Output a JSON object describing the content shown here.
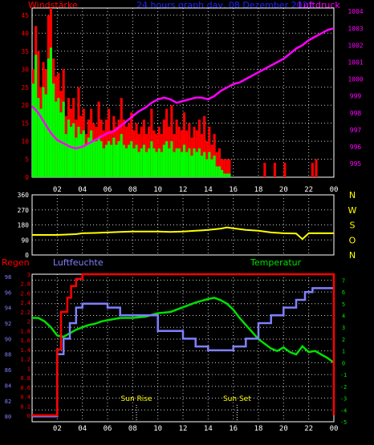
{
  "header": {
    "left_label": "Windstärke",
    "center_label": "24 hours graph day, 08 Dezember 2021",
    "right_label": "Luftdruck"
  },
  "direction_letters": [
    "N",
    "W",
    "S",
    "O",
    "N"
  ],
  "bottom_labels": {
    "rain": "Regen",
    "humidity": "Luftfeuchte",
    "temperature": "Temperatur",
    "sunrise": "Sun Rise",
    "sunset": "Sun Set"
  },
  "colors": {
    "wind_gust": "#ff0000",
    "wind_avg": "#00ff00",
    "pressure": "#ff00ff",
    "direction": "#ffff00",
    "rain": "#ff0000",
    "humidity": "#8080ff",
    "temperature": "#00e000",
    "grid": "#ffffff",
    "header_blue": "#2020ff",
    "sun_label": "#ffff00"
  },
  "chart_data": [
    {
      "type": "bar",
      "name": "wind",
      "x_ticks": [
        "02",
        "04",
        "06",
        "08",
        "10",
        "12",
        "14",
        "16",
        "18",
        "20",
        "22",
        "00"
      ],
      "y_ticks_left": [
        0,
        5,
        10,
        15,
        20,
        25,
        30,
        35,
        40,
        45
      ],
      "y_ticks_right": [
        995,
        996,
        997,
        998,
        999,
        1000,
        1001,
        1002,
        1003,
        1004
      ],
      "ylim_left": [
        0,
        47
      ],
      "ylim_right": [
        994.2,
        1004.2
      ],
      "xlim_hours": [
        0,
        24
      ],
      "gust_samples": [
        [
          0.1,
          30
        ],
        [
          0.3,
          42
        ],
        [
          0.5,
          35
        ],
        [
          0.7,
          25
        ],
        [
          0.9,
          32
        ],
        [
          1.1,
          30
        ],
        [
          1.3,
          45
        ],
        [
          1.5,
          47
        ],
        [
          1.7,
          33
        ],
        [
          1.9,
          28
        ],
        [
          2.1,
          29
        ],
        [
          2.3,
          24
        ],
        [
          2.5,
          30
        ],
        [
          2.7,
          17
        ],
        [
          2.9,
          22
        ],
        [
          3.1,
          19
        ],
        [
          3.3,
          22
        ],
        [
          3.5,
          16
        ],
        [
          3.7,
          25
        ],
        [
          3.9,
          17
        ],
        [
          4.1,
          19
        ],
        [
          4.3,
          12
        ],
        [
          4.5,
          16
        ],
        [
          4.7,
          19
        ],
        [
          4.9,
          15
        ],
        [
          5.1,
          14
        ],
        [
          5.3,
          21
        ],
        [
          5.5,
          16
        ],
        [
          5.7,
          13
        ],
        [
          5.9,
          16
        ],
        [
          6.1,
          19
        ],
        [
          6.3,
          13
        ],
        [
          6.5,
          17
        ],
        [
          6.7,
          14
        ],
        [
          6.9,
          16
        ],
        [
          7.1,
          22
        ],
        [
          7.3,
          16
        ],
        [
          7.5,
          14
        ],
        [
          7.7,
          15
        ],
        [
          7.9,
          18
        ],
        [
          8.1,
          13
        ],
        [
          8.3,
          15
        ],
        [
          8.5,
          12
        ],
        [
          8.7,
          14
        ],
        [
          8.9,
          16
        ],
        [
          9.1,
          12
        ],
        [
          9.3,
          14
        ],
        [
          9.5,
          19
        ],
        [
          9.7,
          13
        ],
        [
          9.9,
          12
        ],
        [
          10.1,
          14
        ],
        [
          10.3,
          12
        ],
        [
          10.5,
          16
        ],
        [
          10.7,
          19
        ],
        [
          10.9,
          14
        ],
        [
          11.1,
          20
        ],
        [
          11.3,
          12
        ],
        [
          11.5,
          16
        ],
        [
          11.7,
          14
        ],
        [
          11.9,
          13
        ],
        [
          12.1,
          18
        ],
        [
          12.3,
          13
        ],
        [
          12.5,
          15
        ],
        [
          12.7,
          11
        ],
        [
          12.9,
          14
        ],
        [
          13.1,
          13
        ],
        [
          13.3,
          16
        ],
        [
          13.5,
          12
        ],
        [
          13.7,
          17
        ],
        [
          13.9,
          10
        ],
        [
          14.1,
          14
        ],
        [
          14.3,
          9
        ],
        [
          14.5,
          12
        ],
        [
          14.7,
          7
        ],
        [
          14.9,
          8
        ],
        [
          15.1,
          5
        ],
        [
          15.3,
          5
        ],
        [
          15.5,
          5
        ],
        [
          15.7,
          5
        ],
        [
          18.5,
          4
        ],
        [
          19.3,
          4
        ],
        [
          20.1,
          4
        ],
        [
          22.3,
          4
        ],
        [
          22.6,
          5
        ]
      ],
      "avg_samples": [
        [
          0.1,
          26
        ],
        [
          0.3,
          34
        ],
        [
          0.5,
          22
        ],
        [
          0.7,
          19
        ],
        [
          0.9,
          25
        ],
        [
          1.1,
          23
        ],
        [
          1.3,
          33
        ],
        [
          1.5,
          36
        ],
        [
          1.7,
          26
        ],
        [
          1.9,
          21
        ],
        [
          2.1,
          22
        ],
        [
          2.3,
          18
        ],
        [
          2.5,
          21
        ],
        [
          2.7,
          12
        ],
        [
          2.9,
          16
        ],
        [
          3.1,
          14
        ],
        [
          3.3,
          15
        ],
        [
          3.5,
          11
        ],
        [
          3.7,
          14
        ],
        [
          3.9,
          12
        ],
        [
          4.1,
          13
        ],
        [
          4.3,
          9
        ],
        [
          4.5,
          11
        ],
        [
          4.7,
          13
        ],
        [
          4.9,
          10
        ],
        [
          5.1,
          10
        ],
        [
          5.3,
          11
        ],
        [
          5.5,
          10
        ],
        [
          5.7,
          8
        ],
        [
          5.9,
          9
        ],
        [
          6.1,
          10
        ],
        [
          6.3,
          9
        ],
        [
          6.5,
          11
        ],
        [
          6.7,
          9
        ],
        [
          6.9,
          10
        ],
        [
          7.1,
          12
        ],
        [
          7.3,
          9
        ],
        [
          7.5,
          8
        ],
        [
          7.7,
          9
        ],
        [
          7.9,
          10
        ],
        [
          8.1,
          8
        ],
        [
          8.3,
          9
        ],
        [
          8.5,
          7
        ],
        [
          8.7,
          8
        ],
        [
          8.9,
          9
        ],
        [
          9.1,
          7
        ],
        [
          9.3,
          8
        ],
        [
          9.5,
          10
        ],
        [
          9.7,
          8
        ],
        [
          9.9,
          7
        ],
        [
          10.1,
          8
        ],
        [
          10.3,
          7
        ],
        [
          10.5,
          9
        ],
        [
          10.7,
          10
        ],
        [
          10.9,
          8
        ],
        [
          11.1,
          10
        ],
        [
          11.3,
          7
        ],
        [
          11.5,
          8
        ],
        [
          11.7,
          8
        ],
        [
          11.9,
          7
        ],
        [
          12.1,
          9
        ],
        [
          12.3,
          7
        ],
        [
          12.5,
          8
        ],
        [
          12.7,
          6
        ],
        [
          12.9,
          8
        ],
        [
          13.1,
          7
        ],
        [
          13.3,
          8
        ],
        [
          13.5,
          6
        ],
        [
          13.7,
          7
        ],
        [
          13.9,
          5
        ],
        [
          14.1,
          7
        ],
        [
          14.3,
          5
        ],
        [
          14.5,
          6
        ],
        [
          14.7,
          3
        ],
        [
          14.9,
          3
        ],
        [
          15.1,
          2
        ],
        [
          15.3,
          1
        ],
        [
          15.5,
          1
        ],
        [
          15.7,
          1
        ]
      ],
      "pressure": [
        [
          0,
          998.4
        ],
        [
          0.5,
          998.0
        ],
        [
          1,
          997.4
        ],
        [
          1.5,
          996.8
        ],
        [
          2,
          996.4
        ],
        [
          2.5,
          996.2
        ],
        [
          3,
          996.0
        ],
        [
          3.5,
          995.9
        ],
        [
          4,
          996.0
        ],
        [
          4.5,
          996.2
        ],
        [
          5,
          996.4
        ],
        [
          5.5,
          996.6
        ],
        [
          6,
          996.8
        ],
        [
          6.5,
          996.9
        ],
        [
          7,
          997.2
        ],
        [
          7.5,
          997.5
        ],
        [
          8,
          997.8
        ],
        [
          8.5,
          998.1
        ],
        [
          9,
          998.3
        ],
        [
          9.5,
          998.6
        ],
        [
          10,
          998.8
        ],
        [
          10.5,
          998.9
        ],
        [
          11,
          998.8
        ],
        [
          11.5,
          998.6
        ],
        [
          12,
          998.7
        ],
        [
          12.5,
          998.8
        ],
        [
          13,
          998.9
        ],
        [
          13.5,
          998.9
        ],
        [
          14,
          998.8
        ],
        [
          14.5,
          999.0
        ],
        [
          15,
          999.3
        ],
        [
          15.5,
          999.5
        ],
        [
          16,
          999.7
        ],
        [
          16.5,
          999.8
        ],
        [
          17,
          1000.0
        ],
        [
          17.5,
          1000.2
        ],
        [
          18,
          1000.4
        ],
        [
          18.5,
          1000.6
        ],
        [
          19,
          1000.8
        ],
        [
          19.5,
          1001.0
        ],
        [
          20,
          1001.2
        ],
        [
          20.5,
          1001.5
        ],
        [
          21,
          1001.8
        ],
        [
          21.5,
          1002.0
        ],
        [
          22,
          1002.3
        ],
        [
          22.5,
          1002.5
        ],
        [
          23,
          1002.7
        ],
        [
          23.5,
          1002.9
        ],
        [
          24,
          1003.0
        ]
      ]
    },
    {
      "type": "line",
      "name": "direction",
      "y_ticks": [
        0,
        90,
        180,
        270,
        360
      ],
      "ylim": [
        0,
        360
      ],
      "xlim_hours": [
        0,
        24
      ],
      "values": [
        [
          0,
          120
        ],
        [
          2,
          120
        ],
        [
          3.5,
          125
        ],
        [
          4,
          130
        ],
        [
          5,
          132
        ],
        [
          6,
          135
        ],
        [
          7,
          138
        ],
        [
          8,
          140
        ],
        [
          9,
          140
        ],
        [
          10,
          140
        ],
        [
          11,
          138
        ],
        [
          12,
          140
        ],
        [
          13,
          145
        ],
        [
          14,
          150
        ],
        [
          15,
          158
        ],
        [
          15.5,
          165
        ],
        [
          16,
          160
        ],
        [
          17,
          150
        ],
        [
          18,
          145
        ],
        [
          19,
          135
        ],
        [
          20,
          130
        ],
        [
          21,
          128
        ],
        [
          21.5,
          95
        ],
        [
          22,
          130
        ],
        [
          23,
          130
        ],
        [
          24,
          130
        ]
      ]
    },
    {
      "type": "line",
      "name": "rain_humidity_temperature",
      "rain_ticks": [
        0,
        0.2,
        0.4,
        0.6,
        0.8,
        1,
        1.2,
        1.4,
        1.6,
        1.8,
        2,
        2.2,
        2.4,
        2.6,
        2.8,
        3
      ],
      "humidity_ticks": [
        80,
        82,
        84,
        86,
        88,
        90,
        92,
        94,
        96,
        98
      ],
      "temperature_ticks": [
        -5,
        -4,
        -3,
        -2,
        -1,
        0,
        1,
        2,
        3,
        4,
        5,
        6,
        7
      ],
      "rain_ylim": [
        0,
        3
      ],
      "humidity_ylim": [
        79.3,
        98.3
      ],
      "temperature_ylim": [
        -5,
        7.5
      ],
      "xlim_hours": [
        0,
        24
      ],
      "rain": [
        [
          0,
          0
        ],
        [
          1.3,
          0
        ],
        [
          2,
          1.4
        ],
        [
          2.3,
          2.2
        ],
        [
          2.8,
          2.5
        ],
        [
          3.1,
          2.75
        ],
        [
          3.5,
          2.9
        ],
        [
          4,
          3.0
        ],
        [
          24,
          3.0
        ],
        [
          24,
          0
        ]
      ],
      "humidity": [
        [
          0,
          80
        ],
        [
          1.3,
          80
        ],
        [
          2,
          88
        ],
        [
          2.5,
          90
        ],
        [
          3,
          92
        ],
        [
          3.5,
          94
        ],
        [
          4,
          94.5
        ],
        [
          5,
          94.5
        ],
        [
          6,
          94
        ],
        [
          7,
          93
        ],
        [
          8,
          93
        ],
        [
          9,
          93
        ],
        [
          10,
          91
        ],
        [
          11,
          91
        ],
        [
          12,
          90
        ],
        [
          13,
          89
        ],
        [
          14,
          88.5
        ],
        [
          15,
          88.5
        ],
        [
          16,
          89
        ],
        [
          17,
          90
        ],
        [
          18,
          92
        ],
        [
          19,
          93
        ],
        [
          20,
          94
        ],
        [
          21,
          95
        ],
        [
          21.7,
          96
        ],
        [
          22.3,
          96.5
        ],
        [
          23,
          96.5
        ],
        [
          24,
          96.5
        ]
      ],
      "temperature": [
        [
          0,
          3.8
        ],
        [
          0.5,
          3.8
        ],
        [
          1,
          3.5
        ],
        [
          1.5,
          3.0
        ],
        [
          2,
          2.3
        ],
        [
          2.5,
          2.2
        ],
        [
          3,
          2.5
        ],
        [
          3.5,
          2.8
        ],
        [
          4,
          3.0
        ],
        [
          4.5,
          3.2
        ],
        [
          5,
          3.3
        ],
        [
          5.5,
          3.5
        ],
        [
          6,
          3.6
        ],
        [
          7,
          3.8
        ],
        [
          8,
          3.8
        ],
        [
          9,
          3.9
        ],
        [
          10,
          4.2
        ],
        [
          11,
          4.3
        ],
        [
          12,
          4.7
        ],
        [
          13,
          5.1
        ],
        [
          14,
          5.4
        ],
        [
          14.5,
          5.5
        ],
        [
          15,
          5.3
        ],
        [
          15.5,
          5.0
        ],
        [
          16,
          4.5
        ],
        [
          16.5,
          3.8
        ],
        [
          17,
          3.2
        ],
        [
          17.5,
          2.6
        ],
        [
          18,
          2.0
        ],
        [
          18.5,
          1.6
        ],
        [
          19,
          1.2
        ],
        [
          19.5,
          1.0
        ],
        [
          20,
          1.3
        ],
        [
          20.5,
          0.9
        ],
        [
          21,
          0.7
        ],
        [
          21.5,
          1.4
        ],
        [
          22,
          0.9
        ],
        [
          22.5,
          1.0
        ],
        [
          23,
          0.7
        ],
        [
          23.5,
          0.4
        ],
        [
          24,
          0.0
        ]
      ],
      "sunrise_hour": 8.3,
      "sunset_hour": 16.3
    }
  ]
}
